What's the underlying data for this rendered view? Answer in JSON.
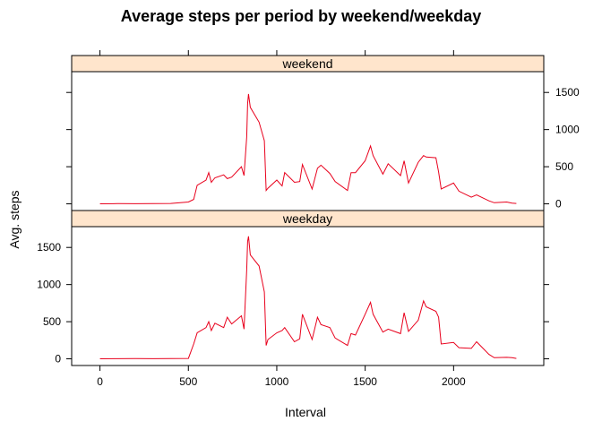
{
  "chart_data": {
    "type": "line",
    "title": "Average steps per period by weekend/weekday",
    "xlabel": "Interval",
    "ylabel": "Avg. steps",
    "xlim": [
      -160,
      2510
    ],
    "ylim": [
      -90,
      1780
    ],
    "x_ticks": [
      0,
      500,
      1000,
      1500,
      2000
    ],
    "y_ticks": [
      0,
      500,
      1000,
      1500
    ],
    "line_color": "#e8001c",
    "strip_color": "#ffe5cc",
    "panels": [
      {
        "name": "weekend",
        "y_axis_side": "right",
        "x": [
          0,
          100,
          200,
          300,
          400,
          500,
          530,
          550,
          600,
          615,
          630,
          650,
          700,
          720,
          745,
          800,
          815,
          830,
          835,
          840,
          850,
          900,
          930,
          940,
          950,
          1000,
          1030,
          1045,
          1100,
          1130,
          1145,
          1200,
          1230,
          1250,
          1300,
          1330,
          1400,
          1420,
          1445,
          1500,
          1530,
          1545,
          1600,
          1630,
          1700,
          1720,
          1745,
          1800,
          1830,
          1845,
          1900,
          1915,
          1930,
          2000,
          2030,
          2100,
          2130,
          2200,
          2230,
          2300,
          2330,
          2355
        ],
        "values": [
          0,
          3,
          2,
          4,
          5,
          25,
          60,
          250,
          320,
          420,
          290,
          350,
          390,
          340,
          360,
          500,
          380,
          900,
          1350,
          1480,
          1300,
          1100,
          850,
          180,
          210,
          320,
          240,
          420,
          290,
          300,
          530,
          200,
          480,
          520,
          410,
          300,
          180,
          420,
          420,
          580,
          780,
          650,
          400,
          540,
          380,
          580,
          280,
          560,
          650,
          630,
          620,
          430,
          200,
          280,
          170,
          90,
          120,
          40,
          15,
          25,
          10,
          5
        ]
      },
      {
        "name": "weekday",
        "y_axis_side": "left",
        "x": [
          0,
          100,
          200,
          300,
          400,
          500,
          530,
          550,
          600,
          615,
          630,
          650,
          700,
          720,
          745,
          800,
          815,
          830,
          835,
          840,
          850,
          900,
          930,
          940,
          950,
          1000,
          1030,
          1045,
          1100,
          1130,
          1145,
          1200,
          1230,
          1250,
          1300,
          1330,
          1400,
          1420,
          1445,
          1500,
          1530,
          1545,
          1600,
          1630,
          1700,
          1720,
          1745,
          1800,
          1830,
          1845,
          1900,
          1915,
          1930,
          2000,
          2030,
          2100,
          2130,
          2200,
          2230,
          2300,
          2330,
          2355
        ],
        "values": [
          0,
          2,
          3,
          2,
          4,
          5,
          200,
          350,
          420,
          500,
          380,
          480,
          420,
          560,
          470,
          580,
          400,
          1200,
          1580,
          1650,
          1400,
          1250,
          900,
          180,
          260,
          350,
          380,
          420,
          230,
          270,
          600,
          260,
          560,
          460,
          420,
          280,
          180,
          340,
          320,
          600,
          760,
          600,
          360,
          400,
          340,
          620,
          370,
          520,
          780,
          700,
          640,
          560,
          200,
          220,
          150,
          140,
          230,
          60,
          15,
          20,
          15,
          5
        ]
      }
    ]
  }
}
